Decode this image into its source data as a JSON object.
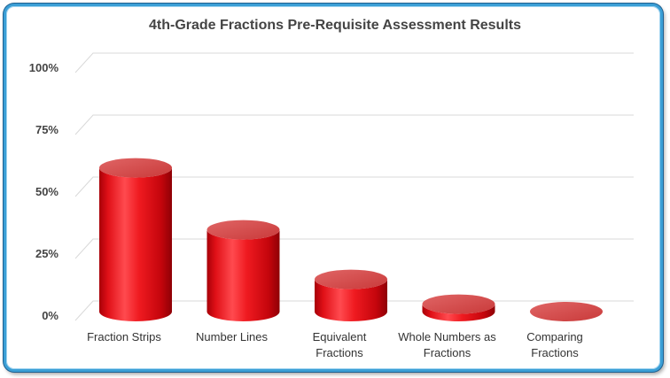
{
  "chart_data": {
    "type": "bar",
    "style": "3d-cylinder",
    "title": "4th-Grade Fractions Pre-Requisite Assessment Results",
    "categories": [
      [
        "Fraction Strips"
      ],
      [
        "Number Lines"
      ],
      [
        "Equivalent",
        "Fractions"
      ],
      [
        "Whole Numbers as",
        "Fractions"
      ],
      [
        "Comparing",
        "Fractions"
      ]
    ],
    "values": [
      58,
      33,
      13,
      3,
      0
    ],
    "ylim": [
      0,
      100
    ],
    "yticks": [
      "0%",
      "25%",
      "50%",
      "75%",
      "100%"
    ],
    "ytick_values": [
      0,
      25,
      50,
      75,
      100
    ],
    "grid": true,
    "legend": "none",
    "colors": {
      "bar": "#e8141b",
      "bar_dark": "#a80008",
      "top": "#d94a4a",
      "grid": "#d9d9d9",
      "frame": "#3b9fd6"
    }
  }
}
